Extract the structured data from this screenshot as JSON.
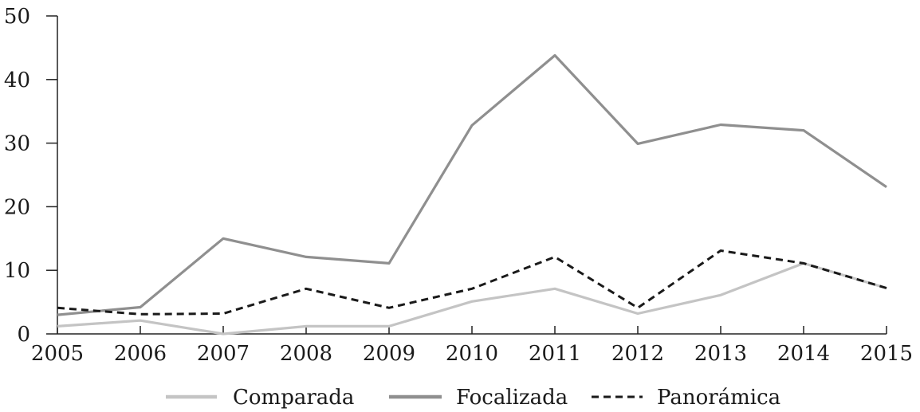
{
  "chart_data": {
    "type": "line",
    "title": "",
    "xlabel": "",
    "ylabel": "",
    "x": [
      "2005",
      "2006",
      "2007",
      "2008",
      "2009",
      "2010",
      "2011",
      "2012",
      "2013",
      "2014",
      "2015"
    ],
    "ylim": [
      0,
      50
    ],
    "yticks": [
      "0",
      "10",
      "20",
      "30",
      "40",
      "50"
    ],
    "grid": false,
    "legend_position": "bottom",
    "series": [
      {
        "name": "Comparada",
        "values": [
          1.2,
          2.1,
          0,
          1.2,
          1.2,
          5.1,
          7.1,
          3.2,
          6.1,
          11.1,
          7.2
        ],
        "color": "#c4c4c4",
        "style": "solid"
      },
      {
        "name": "Focalizada",
        "values": [
          3.0,
          4.2,
          15.0,
          12.1,
          11.1,
          32.8,
          43.8,
          29.9,
          32.9,
          32.0,
          23.1
        ],
        "color": "#8f8f8f",
        "style": "solid"
      },
      {
        "name": "Panorámica",
        "values": [
          4.1,
          3.1,
          3.2,
          7.1,
          4.1,
          7.1,
          12.1,
          4.1,
          13.1,
          11.1,
          7.2
        ],
        "color": "#1a1a1a",
        "style": "dashed"
      }
    ]
  }
}
